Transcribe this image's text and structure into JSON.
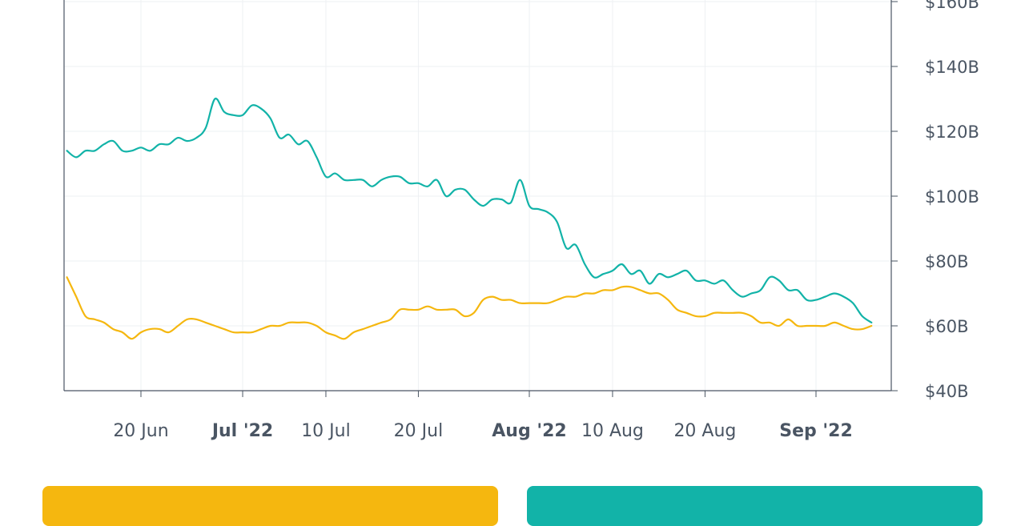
{
  "chart_data": {
    "type": "line",
    "x_ticks": [
      {
        "date": "2022-06-20",
        "label": "20 Jun",
        "major": false
      },
      {
        "date": "2022-07-01",
        "label": "Jul '22",
        "major": true
      },
      {
        "date": "2022-07-10",
        "label": "10 Jul",
        "major": false
      },
      {
        "date": "2022-07-20",
        "label": "20 Jul",
        "major": false
      },
      {
        "date": "2022-08-01",
        "label": "Aug '22",
        "major": true
      },
      {
        "date": "2022-08-10",
        "label": "10 Aug",
        "major": false
      },
      {
        "date": "2022-08-20",
        "label": "20 Aug",
        "major": false
      },
      {
        "date": "2022-09-01",
        "label": "Sep '22",
        "major": true
      }
    ],
    "xlim": [
      "2022-06-12",
      "2022-09-06"
    ],
    "y_ticks": [
      {
        "value": 40,
        "label": "$40B"
      },
      {
        "value": 60,
        "label": "$60B"
      },
      {
        "value": 80,
        "label": "$80B"
      },
      {
        "value": 100,
        "label": "$100B"
      },
      {
        "value": 120,
        "label": "$120B"
      },
      {
        "value": 140,
        "label": "$140B"
      },
      {
        "value": 160,
        "label": "$160B"
      }
    ],
    "ylim": [
      40,
      160
    ],
    "y_axis_position": "right",
    "grid": true,
    "series": [
      {
        "color": "#12b3a8",
        "points": [
          [
            "2022-06-12",
            114
          ],
          [
            "2022-06-13",
            112
          ],
          [
            "2022-06-14",
            114
          ],
          [
            "2022-06-15",
            114
          ],
          [
            "2022-06-16",
            116
          ],
          [
            "2022-06-17",
            117
          ],
          [
            "2022-06-18",
            114
          ],
          [
            "2022-06-19",
            114
          ],
          [
            "2022-06-20",
            115
          ],
          [
            "2022-06-21",
            114
          ],
          [
            "2022-06-22",
            116
          ],
          [
            "2022-06-23",
            116
          ],
          [
            "2022-06-24",
            118
          ],
          [
            "2022-06-25",
            117
          ],
          [
            "2022-06-26",
            118
          ],
          [
            "2022-06-27",
            121
          ],
          [
            "2022-06-28",
            130
          ],
          [
            "2022-06-29",
            126
          ],
          [
            "2022-06-30",
            125
          ],
          [
            "2022-07-01",
            125
          ],
          [
            "2022-07-02",
            128
          ],
          [
            "2022-07-03",
            127
          ],
          [
            "2022-07-04",
            124
          ],
          [
            "2022-07-05",
            118
          ],
          [
            "2022-07-06",
            119
          ],
          [
            "2022-07-07",
            116
          ],
          [
            "2022-07-08",
            117
          ],
          [
            "2022-07-09",
            112
          ],
          [
            "2022-07-10",
            106
          ],
          [
            "2022-07-11",
            107
          ],
          [
            "2022-07-12",
            105
          ],
          [
            "2022-07-13",
            105
          ],
          [
            "2022-07-14",
            105
          ],
          [
            "2022-07-15",
            103
          ],
          [
            "2022-07-16",
            105
          ],
          [
            "2022-07-17",
            106
          ],
          [
            "2022-07-18",
            106
          ],
          [
            "2022-07-19",
            104
          ],
          [
            "2022-07-20",
            104
          ],
          [
            "2022-07-21",
            103
          ],
          [
            "2022-07-22",
            105
          ],
          [
            "2022-07-23",
            100
          ],
          [
            "2022-07-24",
            102
          ],
          [
            "2022-07-25",
            102
          ],
          [
            "2022-07-26",
            99
          ],
          [
            "2022-07-27",
            97
          ],
          [
            "2022-07-28",
            99
          ],
          [
            "2022-07-29",
            99
          ],
          [
            "2022-07-30",
            98
          ],
          [
            "2022-07-31",
            105
          ],
          [
            "2022-08-01",
            97
          ],
          [
            "2022-08-02",
            96
          ],
          [
            "2022-08-03",
            95
          ],
          [
            "2022-08-04",
            92
          ],
          [
            "2022-08-05",
            84
          ],
          [
            "2022-08-06",
            85
          ],
          [
            "2022-08-07",
            79
          ],
          [
            "2022-08-08",
            75
          ],
          [
            "2022-08-09",
            76
          ],
          [
            "2022-08-10",
            77
          ],
          [
            "2022-08-11",
            79
          ],
          [
            "2022-08-12",
            76
          ],
          [
            "2022-08-13",
            77
          ],
          [
            "2022-08-14",
            73
          ],
          [
            "2022-08-15",
            76
          ],
          [
            "2022-08-16",
            75
          ],
          [
            "2022-08-17",
            76
          ],
          [
            "2022-08-18",
            77
          ],
          [
            "2022-08-19",
            74
          ],
          [
            "2022-08-20",
            74
          ],
          [
            "2022-08-21",
            73
          ],
          [
            "2022-08-22",
            74
          ],
          [
            "2022-08-23",
            71
          ],
          [
            "2022-08-24",
            69
          ],
          [
            "2022-08-25",
            70
          ],
          [
            "2022-08-26",
            71
          ],
          [
            "2022-08-27",
            75
          ],
          [
            "2022-08-28",
            74
          ],
          [
            "2022-08-29",
            71
          ],
          [
            "2022-08-30",
            71
          ],
          [
            "2022-08-31",
            68
          ],
          [
            "2022-09-01",
            68
          ],
          [
            "2022-09-02",
            69
          ],
          [
            "2022-09-03",
            70
          ],
          [
            "2022-09-04",
            69
          ],
          [
            "2022-09-05",
            67
          ],
          [
            "2022-09-06",
            63
          ],
          [
            "2022-09-07",
            61
          ]
        ]
      },
      {
        "color": "#f5b70f",
        "points": [
          [
            "2022-06-12",
            75
          ],
          [
            "2022-06-13",
            69
          ],
          [
            "2022-06-14",
            63
          ],
          [
            "2022-06-15",
            62
          ],
          [
            "2022-06-16",
            61
          ],
          [
            "2022-06-17",
            59
          ],
          [
            "2022-06-18",
            58
          ],
          [
            "2022-06-19",
            56
          ],
          [
            "2022-06-20",
            58
          ],
          [
            "2022-06-21",
            59
          ],
          [
            "2022-06-22",
            59
          ],
          [
            "2022-06-23",
            58
          ],
          [
            "2022-06-24",
            60
          ],
          [
            "2022-06-25",
            62
          ],
          [
            "2022-06-26",
            62
          ],
          [
            "2022-06-27",
            61
          ],
          [
            "2022-06-28",
            60
          ],
          [
            "2022-06-29",
            59
          ],
          [
            "2022-06-30",
            58
          ],
          [
            "2022-07-01",
            58
          ],
          [
            "2022-07-02",
            58
          ],
          [
            "2022-07-03",
            59
          ],
          [
            "2022-07-04",
            60
          ],
          [
            "2022-07-05",
            60
          ],
          [
            "2022-07-06",
            61
          ],
          [
            "2022-07-07",
            61
          ],
          [
            "2022-07-08",
            61
          ],
          [
            "2022-07-09",
            60
          ],
          [
            "2022-07-10",
            58
          ],
          [
            "2022-07-11",
            57
          ],
          [
            "2022-07-12",
            56
          ],
          [
            "2022-07-13",
            58
          ],
          [
            "2022-07-14",
            59
          ],
          [
            "2022-07-15",
            60
          ],
          [
            "2022-07-16",
            61
          ],
          [
            "2022-07-17",
            62
          ],
          [
            "2022-07-18",
            65
          ],
          [
            "2022-07-19",
            65
          ],
          [
            "2022-07-20",
            65
          ],
          [
            "2022-07-21",
            66
          ],
          [
            "2022-07-22",
            65
          ],
          [
            "2022-07-23",
            65
          ],
          [
            "2022-07-24",
            65
          ],
          [
            "2022-07-25",
            63
          ],
          [
            "2022-07-26",
            64
          ],
          [
            "2022-07-27",
            68
          ],
          [
            "2022-07-28",
            69
          ],
          [
            "2022-07-29",
            68
          ],
          [
            "2022-07-30",
            68
          ],
          [
            "2022-07-31",
            67
          ],
          [
            "2022-08-01",
            67
          ],
          [
            "2022-08-02",
            67
          ],
          [
            "2022-08-03",
            67
          ],
          [
            "2022-08-04",
            68
          ],
          [
            "2022-08-05",
            69
          ],
          [
            "2022-08-06",
            69
          ],
          [
            "2022-08-07",
            70
          ],
          [
            "2022-08-08",
            70
          ],
          [
            "2022-08-09",
            71
          ],
          [
            "2022-08-10",
            71
          ],
          [
            "2022-08-11",
            72
          ],
          [
            "2022-08-12",
            72
          ],
          [
            "2022-08-13",
            71
          ],
          [
            "2022-08-14",
            70
          ],
          [
            "2022-08-15",
            70
          ],
          [
            "2022-08-16",
            68
          ],
          [
            "2022-08-17",
            65
          ],
          [
            "2022-08-18",
            64
          ],
          [
            "2022-08-19",
            63
          ],
          [
            "2022-08-20",
            63
          ],
          [
            "2022-08-21",
            64
          ],
          [
            "2022-08-22",
            64
          ],
          [
            "2022-08-23",
            64
          ],
          [
            "2022-08-24",
            64
          ],
          [
            "2022-08-25",
            63
          ],
          [
            "2022-08-26",
            61
          ],
          [
            "2022-08-27",
            61
          ],
          [
            "2022-08-28",
            60
          ],
          [
            "2022-08-29",
            62
          ],
          [
            "2022-08-30",
            60
          ],
          [
            "2022-08-31",
            60
          ],
          [
            "2022-09-01",
            60
          ],
          [
            "2022-09-02",
            60
          ],
          [
            "2022-09-03",
            61
          ],
          [
            "2022-09-04",
            60
          ],
          [
            "2022-09-05",
            59
          ],
          [
            "2022-09-06",
            59
          ],
          [
            "2022-09-07",
            60
          ]
        ]
      }
    ]
  },
  "cards": {
    "left_color": "#f5b70f",
    "right_color": "#12b3a8"
  }
}
